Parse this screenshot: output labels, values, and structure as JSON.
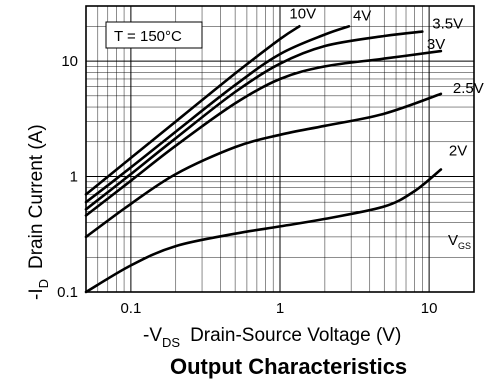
{
  "chart_data": {
    "type": "line",
    "title": "Output Characteristics",
    "xlabel": "-V_DS Drain-Source Voltage (V)",
    "xlabel_parts": {
      "prefix": "-V",
      "sub": "DS",
      "text": "Drain-Source Voltage (V)"
    },
    "ylabel": "-I_D Drain Current (A)",
    "ylabel_parts": {
      "prefix": "-I",
      "sub": "D",
      "text": "Drain Current (A)"
    },
    "x_scale": "log",
    "y_scale": "log",
    "xlim": [
      0.05,
      20
    ],
    "ylim": [
      0.1,
      30
    ],
    "xticks": [
      0.1,
      1,
      10
    ],
    "xtick_labels": [
      "0.1",
      "1",
      "10"
    ],
    "yticks": [
      0.1,
      1,
      10
    ],
    "ytick_labels": [
      "0.1",
      "1",
      "10"
    ],
    "grid": true,
    "annotation": "T = 150°C",
    "legend_title": {
      "prefix": "V",
      "sub": "GS"
    },
    "series": [
      {
        "name": "10V",
        "x": [
          0.05,
          0.1,
          0.2,
          0.5,
          1.0,
          1.35
        ],
        "y": [
          0.7,
          1.45,
          3.0,
          7.8,
          15.5,
          20
        ]
      },
      {
        "name": "4V",
        "x": [
          0.05,
          0.1,
          0.2,
          0.5,
          1.0,
          2.0,
          2.9
        ],
        "y": [
          0.6,
          1.2,
          2.45,
          6.2,
          11.5,
          17,
          20
        ]
      },
      {
        "name": "3.5V",
        "x": [
          0.05,
          0.1,
          0.2,
          0.5,
          1.0,
          2.0,
          5.0,
          9.0
        ],
        "y": [
          0.52,
          1.05,
          2.15,
          5.4,
          9.5,
          13.5,
          16.5,
          18
        ]
      },
      {
        "name": "3V",
        "x": [
          0.05,
          0.1,
          0.2,
          0.5,
          1.0,
          2.0,
          5.0,
          12.0
        ],
        "y": [
          0.46,
          0.92,
          1.85,
          4.3,
          7.0,
          9.0,
          10.5,
          12.2
        ]
      },
      {
        "name": "2.5V",
        "x": [
          0.05,
          0.1,
          0.2,
          0.5,
          1.0,
          2.0,
          5.0,
          12.0
        ],
        "y": [
          0.3,
          0.58,
          1.05,
          1.8,
          2.3,
          2.75,
          3.5,
          5.2
        ]
      },
      {
        "name": "2V",
        "x": [
          0.05,
          0.1,
          0.2,
          0.5,
          1.0,
          2.0,
          5.0,
          8.0,
          12.0
        ],
        "y": [
          0.1,
          0.17,
          0.25,
          0.32,
          0.37,
          0.43,
          0.55,
          0.75,
          1.15
        ]
      }
    ]
  }
}
